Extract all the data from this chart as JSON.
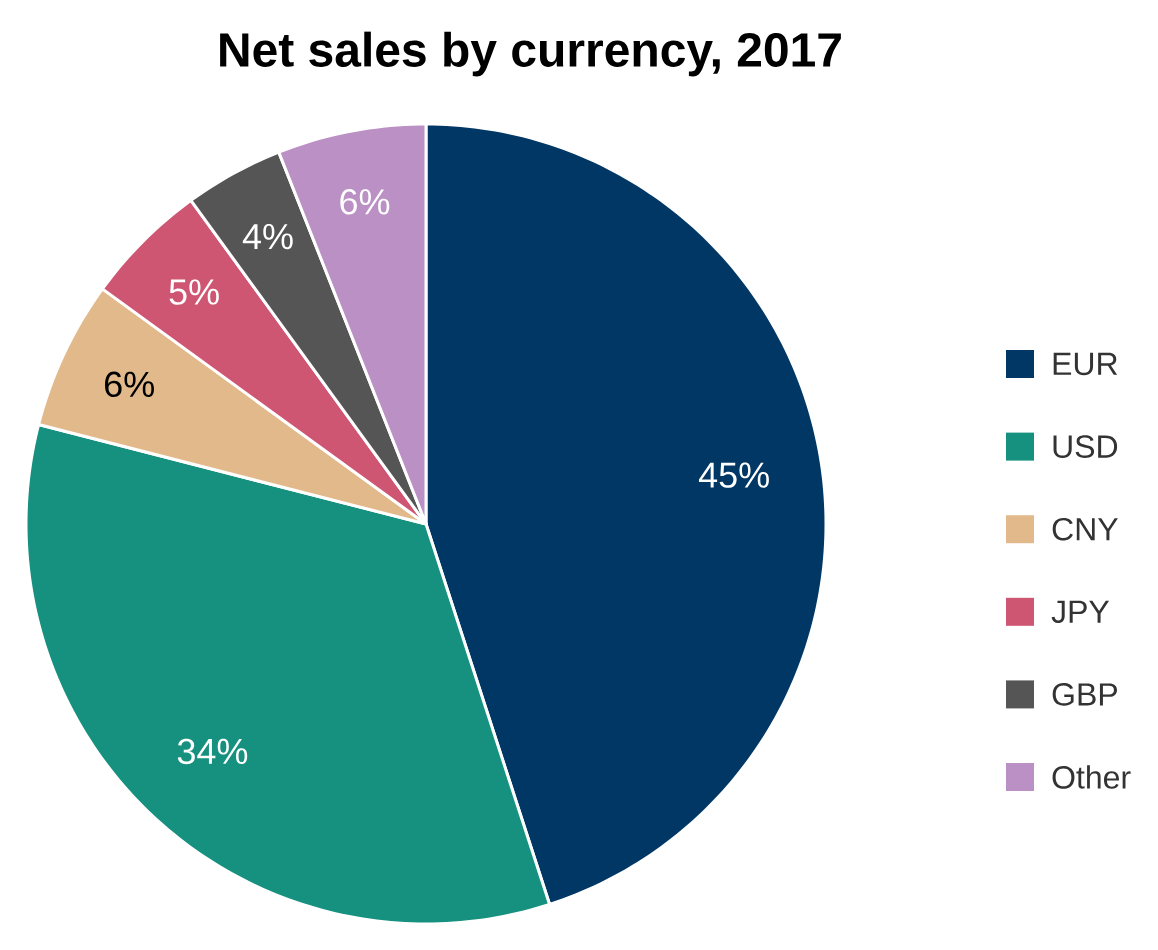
{
  "chart_data": {
    "type": "pie",
    "title": "Net sales by currency, 2017",
    "categories": [
      "EUR",
      "USD",
      "CNY",
      "JPY",
      "GBP",
      "Other"
    ],
    "values": [
      45,
      34,
      6,
      5,
      4,
      6
    ],
    "colors": [
      "#003764",
      "#16917f",
      "#e2b98a",
      "#cf5673",
      "#555555",
      "#bb90c4"
    ],
    "value_labels": [
      "45%",
      "34%",
      "6%",
      "5%",
      "4%",
      "6%"
    ],
    "legend": "right"
  }
}
